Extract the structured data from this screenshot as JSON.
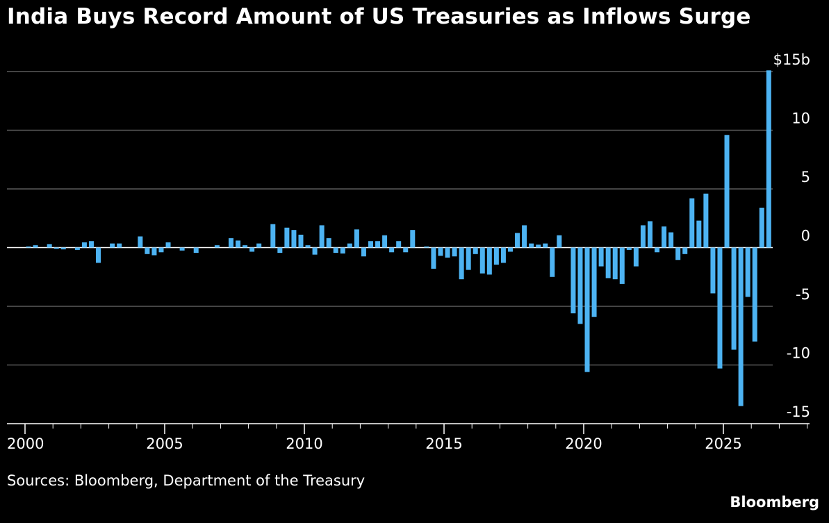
{
  "title": "India Buys Record Amount of US Treasuries as Inflows Surge",
  "source": "Sources: Bloomberg, Department of the Treasury",
  "brand": "Bloomberg",
  "colors": {
    "background": "#000000",
    "bar": "#4DB3F2",
    "grid": "#5a5a5a",
    "text": "#ffffff"
  },
  "chart_data": {
    "type": "bar",
    "title": "India Buys Record Amount of US Treasuries as Inflows Surge",
    "xlabel": "",
    "ylabel": "",
    "x_frequency": "quarterly",
    "x_start": 2000.0,
    "xlim": [
      2000,
      2031.6
    ],
    "ylim": [
      -15,
      15
    ],
    "y_unit": "$ billion",
    "y_ticks": [
      {
        "value": 15,
        "label": "$15b"
      },
      {
        "value": 10,
        "label": "10"
      },
      {
        "value": 5,
        "label": "5"
      },
      {
        "value": 0,
        "label": "0"
      },
      {
        "value": -5,
        "label": "-5"
      },
      {
        "value": -10,
        "label": "-10"
      },
      {
        "value": -15,
        "label": "-15"
      }
    ],
    "x_ticks": [
      {
        "value": 2000,
        "label": "2000"
      },
      {
        "value": 2005,
        "label": "2005"
      },
      {
        "value": 2010,
        "label": "2010"
      },
      {
        "value": 2015,
        "label": "2015"
      },
      {
        "value": 2020,
        "label": "2020"
      },
      {
        "value": 2025,
        "label": "2025"
      }
    ],
    "grid": true,
    "legend": "none",
    "values": [
      0.1,
      0.2,
      0.0,
      0.3,
      -0.1,
      -0.15,
      0.0,
      -0.2,
      0.45,
      0.55,
      -1.3,
      0.0,
      0.35,
      0.35,
      0.0,
      0.0,
      0.95,
      -0.55,
      -0.65,
      -0.4,
      0.45,
      0.0,
      -0.25,
      0.0,
      -0.45,
      0.0,
      0.0,
      0.2,
      0.0,
      0.8,
      0.6,
      0.2,
      -0.35,
      0.35,
      0.0,
      2.0,
      -0.45,
      1.7,
      1.5,
      1.1,
      0.2,
      -0.6,
      1.9,
      0.8,
      -0.45,
      -0.5,
      0.35,
      1.55,
      -0.75,
      0.55,
      0.55,
      1.05,
      -0.4,
      0.55,
      -0.4,
      1.5,
      0.0,
      0.1,
      -1.8,
      -0.7,
      -0.85,
      -0.75,
      -2.7,
      -1.9,
      -0.55,
      -2.2,
      -2.3,
      -1.45,
      -1.3,
      -0.35,
      1.25,
      1.9,
      0.35,
      0.25,
      0.35,
      -2.5,
      1.05,
      0.0,
      -5.6,
      -6.5,
      -10.6,
      -5.9,
      -1.6,
      -2.6,
      -2.7,
      -3.1,
      -0.2,
      -1.6,
      1.9,
      2.25,
      -0.4,
      1.8,
      1.3,
      -1.05,
      -0.55,
      4.2,
      2.3,
      4.6,
      -3.9,
      -10.3,
      9.6,
      -8.7,
      -13.5,
      -4.2,
      -8.0,
      3.4,
      15.1
    ]
  }
}
